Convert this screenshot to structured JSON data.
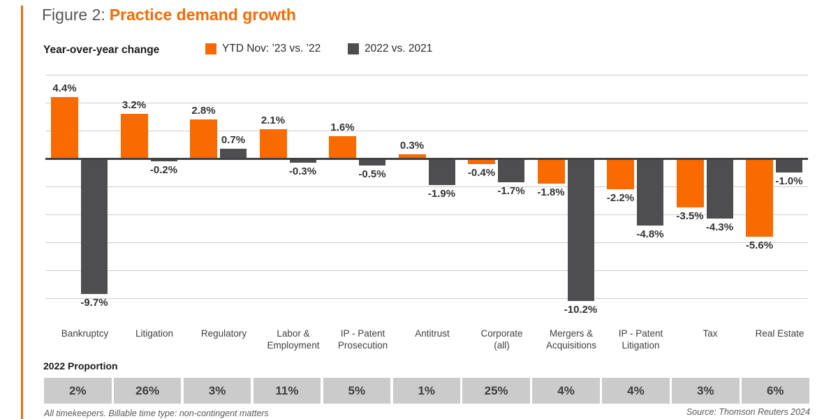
{
  "figure": {
    "label": "Figure 2:",
    "title": "Practice demand growth"
  },
  "legend": {
    "axis_label": "Year-over-year change",
    "series": [
      {
        "name": "YTD Nov: ’23 vs. ’22",
        "color": "#F96A00"
      },
      {
        "name": "2022 vs. 2021",
        "color": "#4E4E50"
      }
    ]
  },
  "chart_data": {
    "type": "bar",
    "title": "Practice demand growth",
    "subtitle": "Year-over-year change",
    "categories": [
      "Bankruptcy",
      "Litigation",
      "Regulatory",
      "Labor &\nEmployment",
      "IP - Patent\nProsecution",
      "Antitrust",
      "Corporate\n(all)",
      "Mergers &\nAcquisitions",
      "IP - Patent\nLitigation",
      "Tax",
      "Real Estate"
    ],
    "series": [
      {
        "name": "YTD Nov: ’23 vs. ’22",
        "color": "#F96A00",
        "values": [
          4.4,
          3.2,
          2.8,
          2.1,
          1.6,
          0.3,
          -0.4,
          -1.8,
          -2.2,
          -3.5,
          -5.6
        ],
        "labels": [
          "4.4%",
          "3.2%",
          "2.8%",
          "2.1%",
          "1.6%",
          "0.3%",
          "-0.4%",
          "-1.8%",
          "-2.2%",
          "-3.5%",
          "-5.6%"
        ]
      },
      {
        "name": "2022 vs. 2021",
        "color": "#4E4E50",
        "values": [
          -9.7,
          -0.2,
          0.7,
          -0.3,
          -0.5,
          -1.9,
          -1.7,
          -10.2,
          -4.8,
          -4.3,
          -1.0
        ],
        "labels": [
          "-9.7%",
          "-0.2%",
          "0.7%",
          "-0.3%",
          "-0.5%",
          "-1.9%",
          "-1.7%",
          "-10.2%",
          "-4.8%",
          "-4.3%",
          "-1.0%"
        ]
      }
    ],
    "ylabel": "",
    "xlabel": "",
    "ylim": [
      -10,
      6
    ],
    "gridline_step": 2,
    "grid": true,
    "legend_position": "top"
  },
  "proportion": {
    "label": "2022 Proportion",
    "values": [
      "2%",
      "26%",
      "3%",
      "11%",
      "5%",
      "1%",
      "25%",
      "4%",
      "4%",
      "3%",
      "6%"
    ]
  },
  "footer": {
    "note": "All timekeepers. Billable time type: non-contingent matters",
    "source": "Source: Thomson Reuters 2024"
  },
  "colors": {
    "orange": "#F96A00",
    "dark_gray": "#4E4E50",
    "box_gray": "#CBCBCB"
  }
}
